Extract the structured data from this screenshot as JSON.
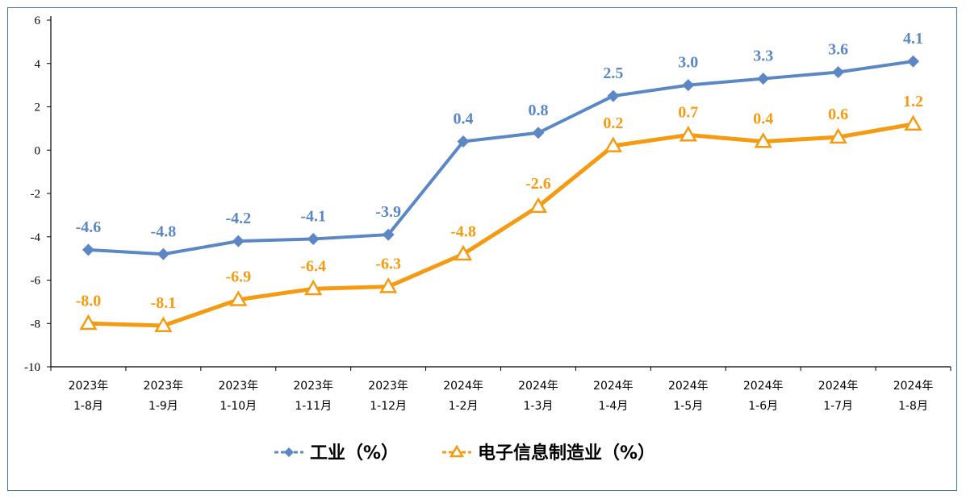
{
  "chart_data": {
    "type": "line",
    "categories": [
      [
        "2023年",
        "1-8月"
      ],
      [
        "2023年",
        "1-9月"
      ],
      [
        "2023年",
        "1-10月"
      ],
      [
        "2023年",
        "1-11月"
      ],
      [
        "2023年",
        "1-12月"
      ],
      [
        "2024年",
        "1-2月"
      ],
      [
        "2024年",
        "1-3月"
      ],
      [
        "2024年",
        "1-4月"
      ],
      [
        "2024年",
        "1-5月"
      ],
      [
        "2024年",
        "1-6月"
      ],
      [
        "2024年",
        "1-7月"
      ],
      [
        "2024年",
        "1-8月"
      ]
    ],
    "series": [
      {
        "name": "工业（%）",
        "color": "#5b87c5",
        "marker": "diamond",
        "values": [
          -4.6,
          -4.8,
          -4.2,
          -4.1,
          -3.9,
          0.4,
          0.8,
          2.5,
          3.0,
          3.3,
          3.6,
          4.1
        ],
        "labels": [
          "-4.6",
          "-4.8",
          "-4.2",
          "-4.1",
          "-3.9",
          "0.4",
          "0.8",
          "2.5",
          "3.0",
          "3.3",
          "3.6",
          "4.1"
        ]
      },
      {
        "name": "电子信息制造业（%）",
        "color": "#f59b12",
        "marker": "triangle",
        "values": [
          -8.0,
          -8.1,
          -6.9,
          -6.4,
          -6.3,
          -4.8,
          -2.6,
          0.2,
          0.7,
          0.4,
          0.6,
          1.2
        ],
        "labels": [
          "-8.0",
          "-8.1",
          "-6.9",
          "-6.4",
          "-6.3",
          "-4.8",
          "-2.6",
          "0.2",
          "0.7",
          "0.4",
          "0.6",
          "1.2"
        ]
      }
    ],
    "ylim": [
      -10,
      6
    ],
    "yticks": [
      "-10",
      "-8",
      "-6",
      "-4",
      "-2",
      "0",
      "2",
      "4",
      "6"
    ],
    "ytick_values": [
      -10,
      -8,
      -6,
      -4,
      -2,
      0,
      2,
      4,
      6
    ],
    "grid": false,
    "legend_position": "bottom",
    "title": "",
    "xlabel": "",
    "ylabel": ""
  }
}
